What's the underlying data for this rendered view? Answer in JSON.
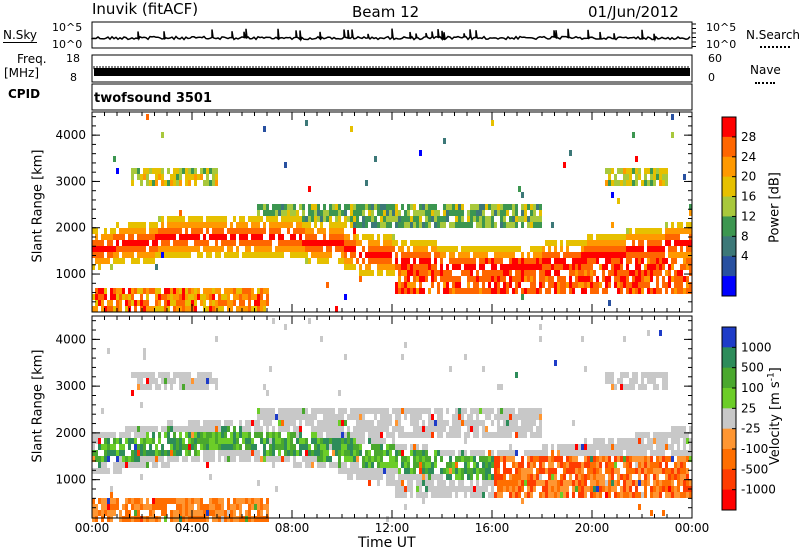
{
  "header": {
    "station": "Inuvik (fitACF)",
    "beam": "Beam 12",
    "date": "01/Jun/2012"
  },
  "nsky": {
    "label": "N.Sky",
    "right_label": "N.Search",
    "tick_top": "10^5",
    "tick_bottom": "10^0",
    "right_tick_top": "10^5",
    "right_tick_bottom": "10^0"
  },
  "freq": {
    "label_line1": "Freq.",
    "label_line2": "[MHz]",
    "tick_top": "18",
    "tick_bottom": "8",
    "right_label": "Nave",
    "right_tick_top": "60",
    "right_tick_bottom": "0"
  },
  "cpid": {
    "label": "CPID",
    "value": "twofsound 3501"
  },
  "chart_data": [
    {
      "type": "heatmap",
      "title": "",
      "parameter": "Power",
      "ylabel": "Slant Range [km]",
      "xlabel": "Time UT",
      "yticks": [
        "1000",
        "2000",
        "3000",
        "4000"
      ],
      "xticks": [
        "00:00",
        "04:00",
        "08:00",
        "12:00",
        "16:00",
        "20:00",
        "00:00"
      ],
      "colorbar_label": "Power [dB]",
      "colorbar_ticks": [
        "28",
        "24",
        "20",
        "16",
        "12",
        "8",
        "4"
      ],
      "colorbar_colors": [
        "#ff0000",
        "#ff6600",
        "#ff9900",
        "#e6c000",
        "#a8c83c",
        "#3c9650",
        "#3c7878",
        "#2850a0",
        "#0000ff"
      ],
      "ylim": [
        180,
        4500
      ]
    },
    {
      "type": "heatmap",
      "title": "",
      "parameter": "Velocity",
      "ylabel": "Slant Range [km]",
      "xlabel": "Time UT",
      "yticks": [
        "1000",
        "2000",
        "3000",
        "4000"
      ],
      "xticks": [
        "00:00",
        "04:00",
        "08:00",
        "12:00",
        "16:00",
        "20:00",
        "00:00"
      ],
      "colorbar_label": "Velocity [m s^-1]",
      "colorbar_ticks": [
        "1000",
        "500",
        "100",
        "25",
        "-25",
        "-100",
        "-500",
        "-1000"
      ],
      "colorbar_colors": [
        "#1e3cc8",
        "#2d8c5a",
        "#4aa82e",
        "#6ccd28",
        "#c8c8c8",
        "#ff9632",
        "#ff6e00",
        "#ff3c00",
        "#ff0000"
      ],
      "ylim": [
        180,
        4500
      ]
    }
  ],
  "xaxis": {
    "label": "Time UT",
    "ticks": [
      "00:00",
      "04:00",
      "08:00",
      "12:00",
      "16:00",
      "20:00",
      "00:00"
    ]
  }
}
